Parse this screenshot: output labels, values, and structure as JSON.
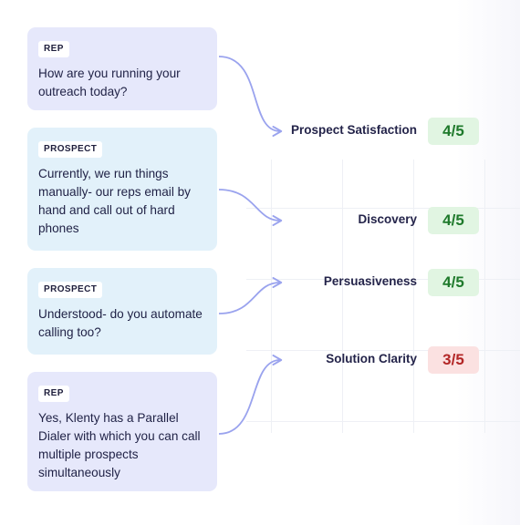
{
  "conversation": [
    {
      "role": "REP",
      "text": "How are you running your outreach today?"
    },
    {
      "role": "PROSPECT",
      "text": "Currently, we run things manually- our reps email by hand and call out of hard phones"
    },
    {
      "role": "PROSPECT",
      "text": "Understood- do you automate calling too?"
    },
    {
      "role": "REP",
      "text": "Yes, Klenty has a Parallel Dialer with which you can call multiple prospects simultaneously"
    }
  ],
  "metrics": [
    {
      "label": "Prospect Satisfaction",
      "score": "4/5"
    },
    {
      "label": "Discovery",
      "score": "4/5"
    },
    {
      "label": "Persuasiveness",
      "score": "4/5"
    },
    {
      "label": "Solution Clarity",
      "score": "3/5"
    }
  ],
  "colors": {
    "rep_card": "#e6e8fb",
    "prospect_card": "#e2f1fa",
    "connector": "#9aa3ee",
    "score_good_bg": "#e1f5e2",
    "score_good_text": "#1f7a2c",
    "score_bad_bg": "#fbe1e1",
    "score_bad_text": "#b32727"
  }
}
